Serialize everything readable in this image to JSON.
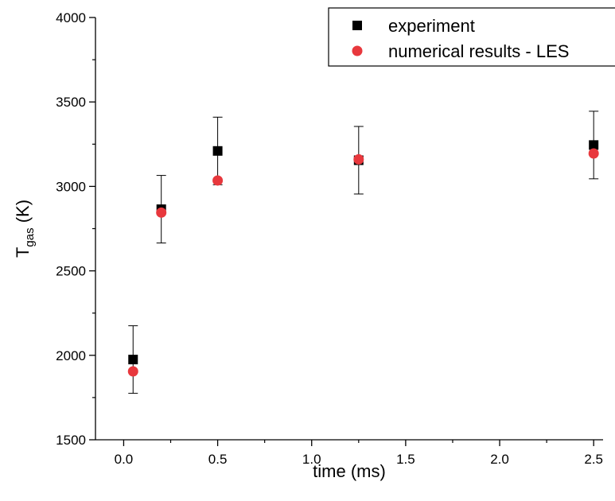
{
  "chart_data": {
    "type": "scatter",
    "xlabel": "time (ms)",
    "ylabel": {
      "main": "T",
      "sub": "gas",
      "unit": " (K)"
    },
    "xlim": [
      -0.15,
      2.55
    ],
    "ylim": [
      1500,
      4000
    ],
    "xticks": [
      {
        "value": 0.0,
        "label": "0.0"
      },
      {
        "value": 0.5,
        "label": "0.5"
      },
      {
        "value": 1.0,
        "label": "1.0"
      },
      {
        "value": 1.5,
        "label": "1.5"
      },
      {
        "value": 2.0,
        "label": "2.0"
      },
      {
        "value": 2.5,
        "label": "2.5"
      }
    ],
    "yticks": [
      {
        "value": 1500,
        "label": "1500"
      },
      {
        "value": 2000,
        "label": "2000"
      },
      {
        "value": 2500,
        "label": "2500"
      },
      {
        "value": 3000,
        "label": "3000"
      },
      {
        "value": 3500,
        "label": "3500"
      },
      {
        "value": 4000,
        "label": "4000"
      }
    ],
    "grid": false,
    "legend_position": "top-right",
    "series": [
      {
        "name": "experiment",
        "marker": "square",
        "color": "#000000",
        "points": [
          {
            "x": 0.05,
            "y": 1975,
            "err": 200
          },
          {
            "x": 0.2,
            "y": 2865,
            "err": 200
          },
          {
            "x": 0.5,
            "y": 3210,
            "err": 200
          },
          {
            "x": 1.25,
            "y": 3155,
            "err": 200
          },
          {
            "x": 2.5,
            "y": 3245,
            "err": 200
          }
        ]
      },
      {
        "name": "numerical results - LES",
        "marker": "circle",
        "color": "#e8383d",
        "points": [
          {
            "x": 0.05,
            "y": 1905
          },
          {
            "x": 0.2,
            "y": 2845
          },
          {
            "x": 0.5,
            "y": 3035
          },
          {
            "x": 1.25,
            "y": 3160
          },
          {
            "x": 2.5,
            "y": 3195
          }
        ]
      }
    ]
  }
}
